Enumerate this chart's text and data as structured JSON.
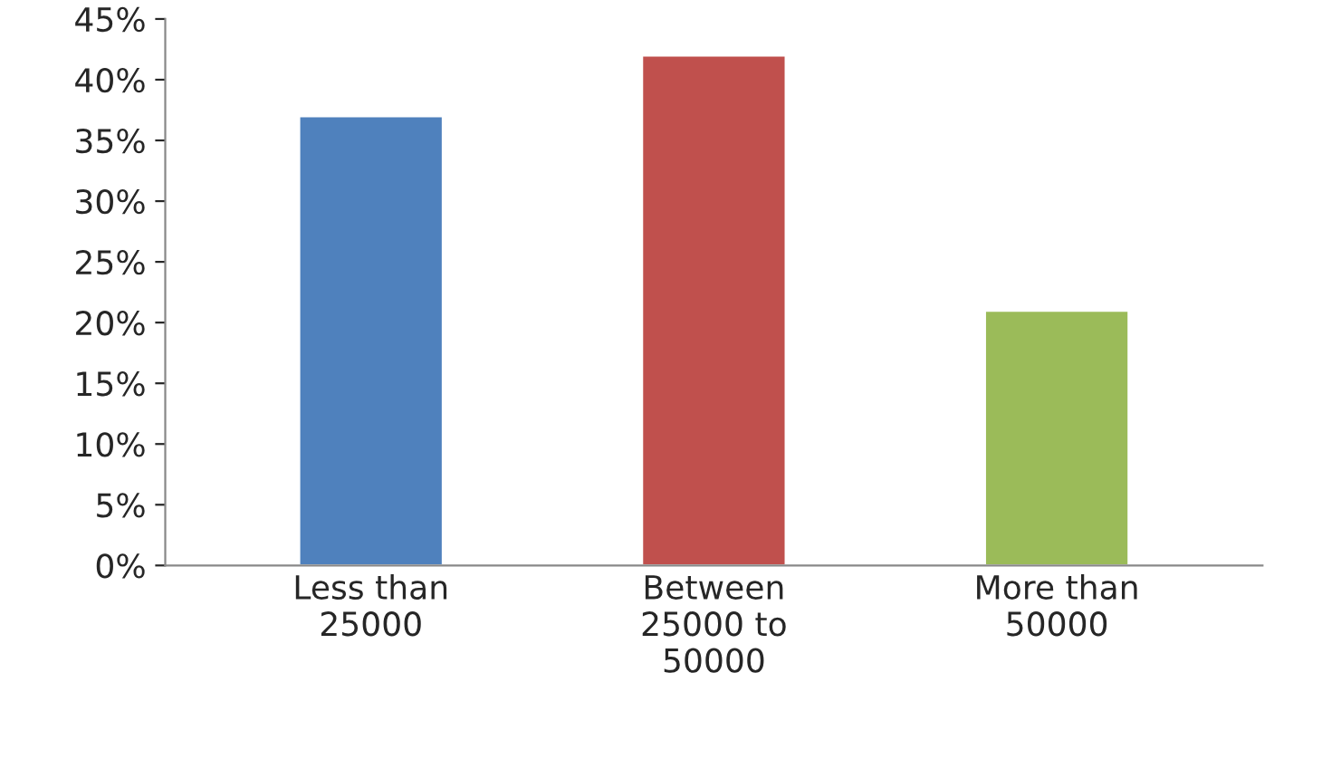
{
  "chart_data": {
    "type": "bar",
    "categories": [
      "Less than\n25000",
      "Between\n25000 to\n50000",
      "More than\n50000"
    ],
    "values": [
      37,
      42,
      21
    ],
    "colors": [
      "#4f81bd",
      "#c0504d",
      "#9bbb59"
    ],
    "ylim": [
      0,
      45
    ],
    "yticks": [
      {
        "value": 0,
        "label": "0%"
      },
      {
        "value": 5,
        "label": "5%"
      },
      {
        "value": 10,
        "label": "10%"
      },
      {
        "value": 15,
        "label": "15%"
      },
      {
        "value": 20,
        "label": "20%"
      },
      {
        "value": 25,
        "label": "25%"
      },
      {
        "value": 30,
        "label": "30%"
      },
      {
        "value": 35,
        "label": "35%"
      },
      {
        "value": 40,
        "label": "40%"
      },
      {
        "value": 45,
        "label": "45%"
      }
    ],
    "grid": false,
    "legend": false
  }
}
